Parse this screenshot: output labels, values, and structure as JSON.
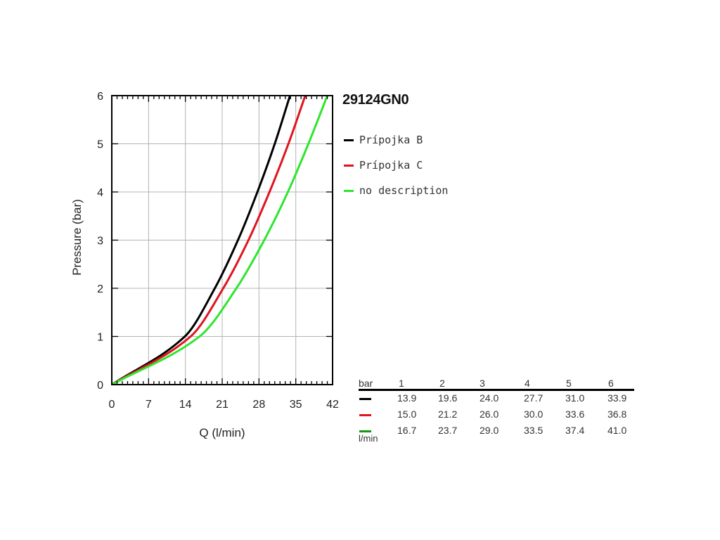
{
  "chart_data": {
    "type": "line",
    "title": "29124GN0",
    "xlabel": "Q (l/min)",
    "ylabel": "Pressure (bar)",
    "xlim": [
      0,
      42
    ],
    "ylim": [
      0,
      6
    ],
    "xticks": [
      0,
      7,
      14,
      21,
      28,
      35,
      42
    ],
    "yticks": [
      0,
      1,
      2,
      3,
      4,
      5,
      6
    ],
    "grid": true,
    "legend_position": "right",
    "series": [
      {
        "name": "Prípojka B",
        "color": "#000000",
        "x": [
          0,
          13.9,
          19.6,
          24.0,
          27.7,
          31.0,
          33.9
        ],
        "y": [
          0,
          1,
          2,
          3,
          4,
          5,
          6
        ]
      },
      {
        "name": "Prípojka C",
        "color": "#e0141e",
        "x": [
          0,
          15.0,
          21.2,
          26.0,
          30.0,
          33.6,
          36.8
        ],
        "y": [
          0,
          1,
          2,
          3,
          4,
          5,
          6
        ]
      },
      {
        "name": "no description",
        "color": "#2ee62e",
        "x": [
          0,
          16.7,
          23.7,
          29.0,
          33.5,
          37.4,
          41.0
        ],
        "y": [
          0,
          1,
          2,
          3,
          4,
          5,
          6
        ]
      }
    ]
  },
  "table": {
    "head_unit": "bar",
    "bottom_unit": "l/min",
    "columns": [
      "1",
      "2",
      "3",
      "4",
      "5",
      "6"
    ],
    "rows": [
      {
        "color": "#000000",
        "values": [
          "13.9",
          "19.6",
          "24.0",
          "27.7",
          "31.0",
          "33.9"
        ]
      },
      {
        "color": "#e0141e",
        "values": [
          "15.0",
          "21.2",
          "26.0",
          "30.0",
          "33.6",
          "36.8"
        ]
      },
      {
        "color": "#119911",
        "values": [
          "16.7",
          "23.7",
          "29.0",
          "33.5",
          "37.4",
          "41.0"
        ]
      }
    ]
  }
}
